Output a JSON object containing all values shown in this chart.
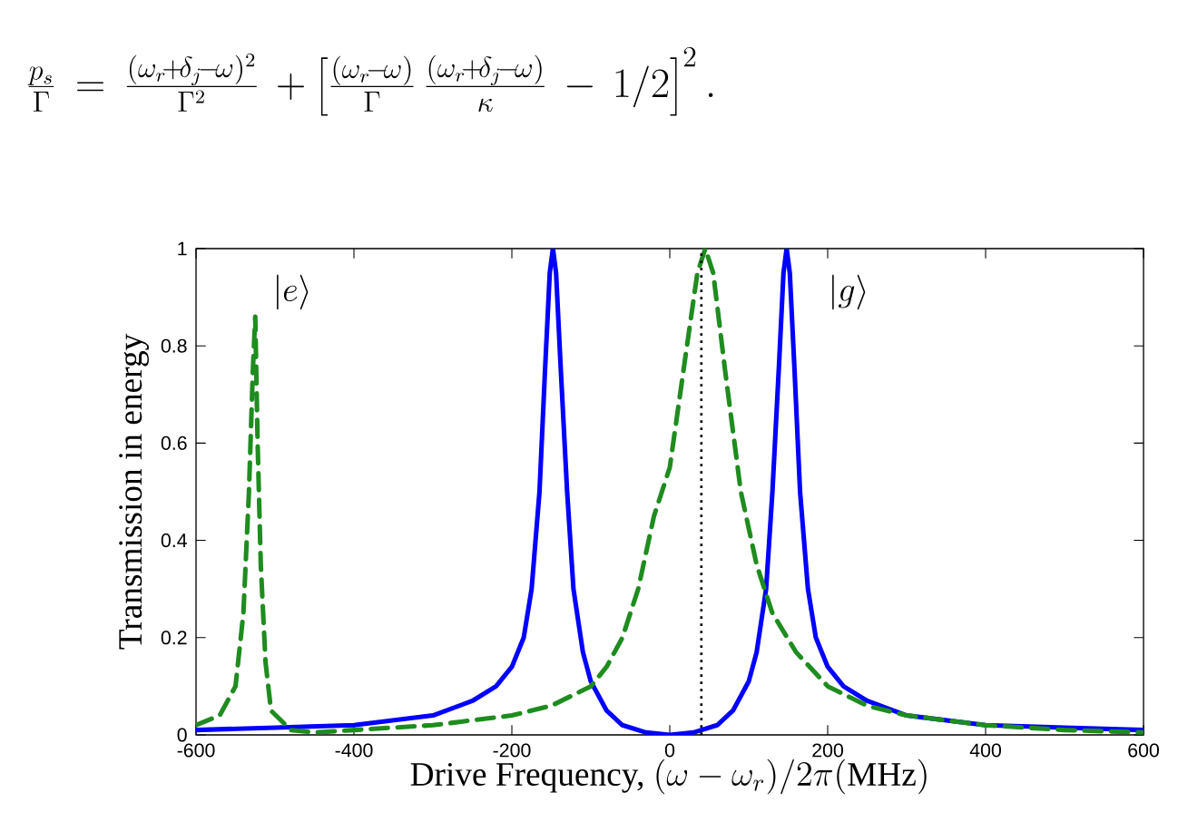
{
  "chart_data": {
    "type": "line",
    "xlabel": "\\mbox{Drive Frequency, }(\\omega-\\omega_r)/2\\pi(\\mathrm{MHz})",
    "ylabel": "Transmission in energy",
    "annotations": [
      "\\frac{p_s}{\\Gamma}\\,=\\,\\frac{(\\omega_r\\!+\\!\\delta_j\\!-\\!\\omega)^2}{\\Gamma^2}\\,+\\left[\\frac{(\\omega_r\\!-\\!\\omega)}{\\Gamma}\\,\\frac{(\\omega_r\\!+\\!\\delta_j\\!-\\!\\omega)}{\\kappa}\\,-\\,1/2\\right]^2.",
      "|e\\rangle",
      "|g\\rangle"
    ],
    "xlim": [
      -600,
      600
    ],
    "ylim": [
      0,
      1
    ],
    "xticks": [
      -600,
      -400,
      -200,
      0,
      200,
      400,
      600
    ],
    "yticks": [
      0,
      0.2,
      0.4,
      0.6,
      0.8,
      1
    ],
    "grid": false,
    "marker": "none",
    "ref_lines": [
      {
        "axis": "x",
        "value": 40,
        "color": "#000000",
        "line_style": "dotted"
      }
    ],
    "series": [
      {
        "color": "#0000ff",
        "line_style": "solid",
        "x": [
          -600,
          -500,
          -400,
          -300,
          -250,
          -220,
          -200,
          -185,
          -175,
          -165,
          -158,
          -152,
          -148,
          -144,
          -138,
          -130,
          -122,
          -110,
          -100,
          -80,
          -60,
          -30,
          0,
          30,
          60,
          80,
          100,
          110,
          122,
          130,
          138,
          144,
          148,
          152,
          158,
          165,
          175,
          185,
          200,
          220,
          250,
          300,
          400,
          500,
          600
        ],
        "values": [
          0.01,
          0.015,
          0.02,
          0.04,
          0.07,
          0.1,
          0.14,
          0.2,
          0.3,
          0.5,
          0.75,
          0.95,
          1.0,
          0.95,
          0.75,
          0.5,
          0.3,
          0.17,
          0.11,
          0.05,
          0.02,
          0.005,
          0,
          0.005,
          0.02,
          0.05,
          0.11,
          0.17,
          0.3,
          0.5,
          0.75,
          0.95,
          1.0,
          0.95,
          0.75,
          0.5,
          0.3,
          0.2,
          0.14,
          0.1,
          0.07,
          0.04,
          0.02,
          0.015,
          0.01
        ]
      },
      {
        "color": "#1e8c1e",
        "line_style": "dashed",
        "x": [
          -600,
          -570,
          -550,
          -540,
          -533,
          -528,
          -525,
          -522,
          -518,
          -512,
          -505,
          -480,
          -450,
          -400,
          -300,
          -200,
          -150,
          -100,
          -80,
          -60,
          -40,
          -20,
          0,
          20,
          35,
          45,
          55,
          70,
          90,
          110,
          130,
          160,
          200,
          250,
          300,
          400,
          500,
          600
        ],
        "values": [
          0.02,
          0.04,
          0.1,
          0.25,
          0.5,
          0.75,
          0.86,
          0.6,
          0.35,
          0.15,
          0.05,
          0.01,
          0.005,
          0.01,
          0.02,
          0.04,
          0.06,
          0.1,
          0.14,
          0.2,
          0.3,
          0.45,
          0.55,
          0.78,
          0.95,
          1.0,
          0.95,
          0.75,
          0.5,
          0.35,
          0.25,
          0.17,
          0.1,
          0.06,
          0.04,
          0.02,
          0.01,
          0.005
        ]
      }
    ]
  }
}
